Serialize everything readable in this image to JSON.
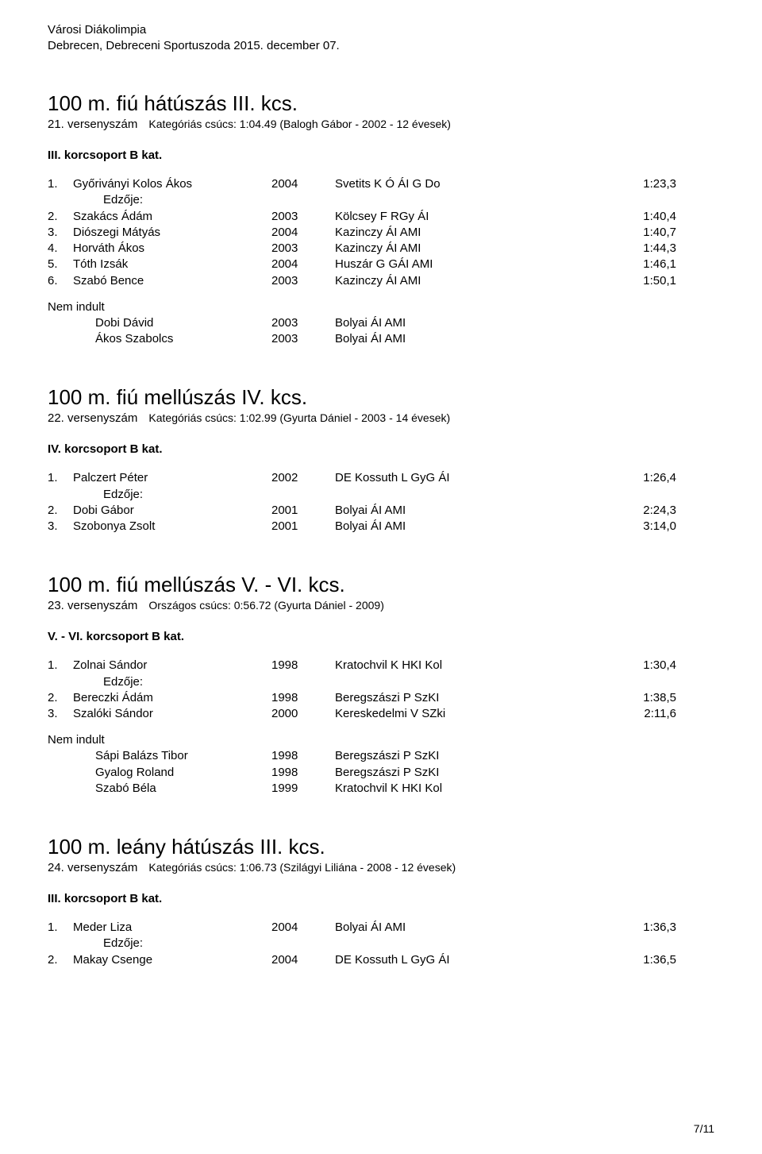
{
  "header": {
    "line1": "Városi Diákolimpia",
    "line2": "Debrecen, Debreceni Sportuszoda 2015. december 07."
  },
  "labels": {
    "nem_indult": "Nem indult",
    "coach": "Edzője:"
  },
  "events": [
    {
      "title": "100 m. fiú hátúszás III. kcs.",
      "event_number": "21. versenyszám",
      "record_note": "Kategóriás csúcs:  1:04.49 (Balogh Gábor - 2002 - 12 évesek)",
      "group_title": "III. korcsoport B kat.",
      "rows": [
        {
          "rank": "1.",
          "name": "Győriványi Kolos Ákos",
          "year": "2004",
          "club": "Svetits K Ó ÁI G Do",
          "time": "1:23,3",
          "coach_after": true
        },
        {
          "rank": "2.",
          "name": "Szakács Ádám",
          "year": "2003",
          "club": "Kölcsey F RGy ÁI",
          "time": "1:40,4"
        },
        {
          "rank": "3.",
          "name": "Diószegi Mátyás",
          "year": "2004",
          "club": "Kazinczy ÁI AMI",
          "time": "1:40,7"
        },
        {
          "rank": "4.",
          "name": "Horváth Ákos",
          "year": "2003",
          "club": "Kazinczy ÁI AMI",
          "time": "1:44,3"
        },
        {
          "rank": "5.",
          "name": "Tóth Izsák",
          "year": "2004",
          "club": "Huszár G GÁI AMI",
          "time": "1:46,1"
        },
        {
          "rank": "6.",
          "name": "Szabó Bence",
          "year": "2003",
          "club": "Kazinczy ÁI AMI",
          "time": "1:50,1"
        }
      ],
      "dns": [
        {
          "name": "Dobi Dávid",
          "year": "2003",
          "club": "Bolyai ÁI AMI"
        },
        {
          "name": "Ákos Szabolcs",
          "year": "2003",
          "club": "Bolyai ÁI AMI"
        }
      ]
    },
    {
      "title": "100 m. fiú mellúszás IV. kcs.",
      "event_number": "22. versenyszám",
      "record_note": "Kategóriás csúcs:  1:02.99 (Gyurta Dániel - 2003 - 14 évesek)",
      "group_title": "IV. korcsoport B kat.",
      "rows": [
        {
          "rank": "1.",
          "name": "Palczert Péter",
          "year": "2002",
          "club": "DE Kossuth L GyG ÁI",
          "time": "1:26,4",
          "coach_after": true
        },
        {
          "rank": "2.",
          "name": "Dobi Gábor",
          "year": "2001",
          "club": "Bolyai ÁI AMI",
          "time": "2:24,3"
        },
        {
          "rank": "3.",
          "name": "Szobonya Zsolt",
          "year": "2001",
          "club": "Bolyai ÁI AMI",
          "time": "3:14,0"
        }
      ],
      "dns": []
    },
    {
      "title": "100 m. fiú mellúszás V. - VI. kcs.",
      "event_number": "23. versenyszám",
      "record_note": "Országos csúcs:  0:56.72 (Gyurta Dániel - 2009)",
      "group_title": "V. - VI. korcsoport B kat.",
      "rows": [
        {
          "rank": "1.",
          "name": "Zolnai Sándor",
          "year": "1998",
          "club": "Kratochvil K HKI Kol",
          "time": "1:30,4",
          "coach_after": true
        },
        {
          "rank": "2.",
          "name": "Bereczki Ádám",
          "year": "1998",
          "club": "Beregszászi P SzKI",
          "time": "1:38,5"
        },
        {
          "rank": "3.",
          "name": "Szalóki Sándor",
          "year": "2000",
          "club": "Kereskedelmi V SZki",
          "time": "2:11,6"
        }
      ],
      "dns": [
        {
          "name": "Sápi Balázs Tibor",
          "year": "1998",
          "club": "Beregszászi P SzKI"
        },
        {
          "name": "Gyalog Roland",
          "year": "1998",
          "club": "Beregszászi P SzKI"
        },
        {
          "name": "Szabó Béla",
          "year": "1999",
          "club": "Kratochvil K HKI Kol"
        }
      ]
    },
    {
      "title": "100 m. leány hátúszás III. kcs.",
      "event_number": "24. versenyszám",
      "record_note": "Kategóriás csúcs:  1:06.73 (Szilágyi Liliána - 2008 - 12 évesek)",
      "group_title": "III. korcsoport B kat.",
      "rows": [
        {
          "rank": "1.",
          "name": "Meder Liza",
          "year": "2004",
          "club": "Bolyai ÁI AMI",
          "time": "1:36,3",
          "coach_after": true
        },
        {
          "rank": "2.",
          "name": "Makay Csenge",
          "year": "2004",
          "club": "DE Kossuth L GyG ÁI",
          "time": "1:36,5"
        }
      ],
      "dns": []
    }
  ],
  "footer": {
    "page": "7/11"
  }
}
